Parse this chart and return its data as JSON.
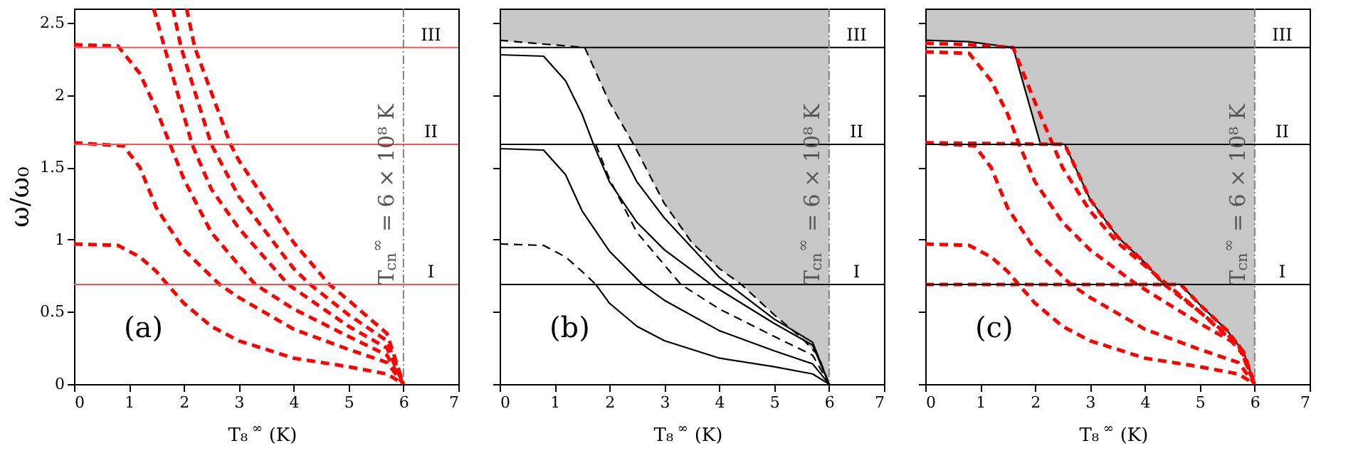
{
  "chart_data": [
    {
      "type": "line",
      "xlabel": "T₈$^{∞}$ (K)",
      "ylabel": "ω/ω₀",
      "xlim": [
        0,
        7
      ],
      "ylim": [
        0,
        2.6
      ],
      "xticks": [
        0,
        1,
        2,
        3,
        4,
        5,
        6,
        7
      ],
      "yticks": [
        0,
        0.5,
        1,
        1.5,
        2,
        2.5
      ],
      "line_style": "dashed",
      "annotations": [
        "(a)"
      ],
      "ref_lines": [
        {
          "axis": "y",
          "value": 0.69,
          "label": "I",
          "color": "#ff5050",
          "line_style": "solid"
        },
        {
          "axis": "y",
          "value": 1.66,
          "label": "II",
          "color": "#ff5050",
          "line_style": "solid"
        },
        {
          "axis": "y",
          "value": 2.33,
          "label": "III",
          "color": "#ff5050",
          "line_style": "solid"
        },
        {
          "axis": "x",
          "value": 6,
          "label": "T$_{cn}$$^{∞}$ = 6 × 10⁸ K",
          "color": "#808080",
          "line_style": "dashed"
        }
      ],
      "series": [
        {
          "color": "#ff0000",
          "x": [
            0,
            0.8,
            1.2,
            1.5,
            1.7,
            2,
            2.5,
            3,
            4,
            5,
            5.7,
            6
          ],
          "values": [
            0.97,
            0.96,
            0.88,
            0.78,
            0.69,
            0.56,
            0.4,
            0.3,
            0.18,
            0.12,
            0.07,
            0
          ]
        },
        {
          "color": "#ff0000",
          "x": [
            0,
            0.9,
            1.2,
            1.5,
            2,
            2.65,
            3,
            4,
            5,
            5.7,
            6
          ],
          "values": [
            1.67,
            1.65,
            1.5,
            1.22,
            0.93,
            0.69,
            0.6,
            0.38,
            0.24,
            0.15,
            0
          ]
        },
        {
          "color": "#ff0000",
          "x": [
            0,
            0.8,
            1.2,
            1.5,
            1.75,
            2,
            2.5,
            3.3,
            4,
            5,
            5.7,
            6
          ],
          "values": [
            2.35,
            2.34,
            2.15,
            1.9,
            1.66,
            1.42,
            1.05,
            0.69,
            0.52,
            0.33,
            0.2,
            0
          ]
        },
        {
          "color": "#ff0000",
          "x": [
            1.45,
            1.65,
            2.15,
            2.5,
            3,
            3.9,
            5,
            5.7,
            6
          ],
          "values": [
            2.6,
            2.33,
            1.66,
            1.35,
            1.08,
            0.69,
            0.4,
            0.25,
            0
          ]
        },
        {
          "color": "#ff0000",
          "x": [
            1.8,
            1.95,
            2.5,
            3,
            4,
            4.3,
            5,
            5.7,
            6
          ],
          "values": [
            2.6,
            2.33,
            1.66,
            1.3,
            0.8,
            0.69,
            0.48,
            0.3,
            0
          ]
        },
        {
          "color": "#ff0000",
          "x": [
            2.05,
            2.2,
            2.85,
            3,
            4,
            4.65,
            5,
            5.7,
            6
          ],
          "values": [
            2.6,
            2.33,
            1.66,
            1.55,
            0.98,
            0.69,
            0.58,
            0.35,
            0
          ]
        }
      ]
    },
    {
      "type": "line",
      "xlabel": "T₈$^{∞}$ (K)",
      "xlim": [
        0,
        7
      ],
      "ylim": [
        0,
        2.6
      ],
      "xticks": [
        0,
        1,
        2,
        3,
        4,
        5,
        6,
        7
      ],
      "yticks": [
        0,
        0.5,
        1,
        1.5,
        2,
        2.5
      ],
      "tick_labels": "x",
      "line_style": "solid",
      "annotations": [
        "(b)"
      ],
      "ref_lines": [
        {
          "axis": "y",
          "value": 0.69,
          "label": "I",
          "color": "#000000",
          "line_style": "solid"
        },
        {
          "axis": "y",
          "value": 1.66,
          "label": "II",
          "color": "#000000",
          "line_style": "solid"
        },
        {
          "axis": "y",
          "value": 2.33,
          "label": "III",
          "color": "#000000",
          "line_style": "solid"
        },
        {
          "axis": "x",
          "value": 6,
          "label": "T$_{cn}$$^{∞}$ = 6 × 10⁸ K",
          "color": "#808080",
          "line_style": "dashed"
        }
      ],
      "series": [
        {
          "color": "#000000",
          "line_style": "dashed",
          "x": [
            0,
            1.55,
            2,
            2.44,
            3,
            3.5,
            4,
            4.4,
            5,
            5.5,
            5.8,
            6
          ],
          "values": [
            2.38,
            2.33,
            1.95,
            1.66,
            1.25,
            0.98,
            0.8,
            0.69,
            0.48,
            0.32,
            0.2,
            0
          ],
          "lower": [
            2.38,
            2.33,
            1.95,
            1.66,
            1.25,
            0.98,
            0.8,
            0.69,
            0.48,
            0.32,
            0.2,
            0
          ],
          "upper": [
            2.6,
            2.6,
            2.6,
            2.6,
            2.6,
            2.6,
            2.6,
            2.6,
            2.6,
            2.6,
            2.6,
            2.6
          ]
        },
        {
          "color": "#000000",
          "line_style": "dashed",
          "x": [
            0,
            0.8,
            1.2,
            1.5,
            1.75
          ],
          "values": [
            0.97,
            0.96,
            0.88,
            0.78,
            0.69
          ]
        },
        {
          "color": "#000000",
          "x": [
            1.75,
            2,
            2.5,
            3,
            4,
            5,
            5.7,
            6
          ],
          "values": [
            0.69,
            0.56,
            0.4,
            0.3,
            0.18,
            0.12,
            0.07,
            0
          ]
        },
        {
          "color": "#000000",
          "x": [
            0,
            0.8,
            1.2,
            1.5,
            2,
            2.6,
            3,
            4,
            5,
            5.7,
            6
          ],
          "values": [
            1.63,
            1.62,
            1.45,
            1.2,
            0.92,
            0.69,
            0.58,
            0.37,
            0.23,
            0.14,
            0
          ]
        },
        {
          "color": "#000000",
          "line_style": "dashed",
          "x": [
            1.75,
            2,
            2.5,
            3.3,
            4,
            5,
            5.7,
            6
          ],
          "values": [
            1.66,
            1.42,
            1.05,
            0.69,
            0.52,
            0.33,
            0.2,
            0
          ]
        },
        {
          "color": "#000000",
          "x": [
            0,
            0.8,
            1.2,
            1.5,
            1.71,
            2,
            2.5,
            3,
            3.85,
            5,
            5.7,
            6
          ],
          "values": [
            2.28,
            2.27,
            2.1,
            1.87,
            1.66,
            1.4,
            1.12,
            0.93,
            0.69,
            0.42,
            0.27,
            0
          ]
        },
        {
          "color": "#000000",
          "x": [
            2.15,
            2.5,
            3,
            4,
            5,
            5.7,
            6
          ],
          "values": [
            1.66,
            1.4,
            1.15,
            0.74,
            0.45,
            0.29,
            0
          ]
        }
      ]
    },
    {
      "type": "line",
      "xlabel": "T₈$^{∞}$ (K)",
      "xlim": [
        0,
        7
      ],
      "ylim": [
        0,
        2.6
      ],
      "xticks": [
        0,
        1,
        2,
        3,
        4,
        5,
        6,
        7
      ],
      "yticks": [
        0,
        0.5,
        1,
        1.5,
        2,
        2.5
      ],
      "tick_labels": "x",
      "line_style": "dashed",
      "annotations": [
        "(c)"
      ],
      "ref_lines": [
        {
          "axis": "y",
          "value": 0.69,
          "label": "I",
          "color": "#000000",
          "line_style": "solid"
        },
        {
          "axis": "y",
          "value": 1.66,
          "label": "II",
          "color": "#000000",
          "line_style": "solid"
        },
        {
          "axis": "y",
          "value": 2.33,
          "label": "III",
          "color": "#000000",
          "line_style": "solid"
        },
        {
          "axis": "x",
          "value": 6,
          "label": "T$_{cn}$$^{∞}$ = 6 × 10⁸ K",
          "color": "#808080",
          "line_style": "dashed"
        }
      ],
      "series": [
        {
          "color": "#000000",
          "line_style": "solid",
          "x": [
            0,
            0.8,
            1.6,
            2.1,
            2.54,
            3,
            3.5,
            4,
            4.35,
            4.65,
            5,
            5.5,
            5.8,
            6
          ],
          "values": [
            2.38,
            2.37,
            2.33,
            1.66,
            1.66,
            1.28,
            1.02,
            0.84,
            0.69,
            0.69,
            0.55,
            0.37,
            0.22,
            0
          ],
          "lower": [
            2.38,
            2.37,
            2.33,
            1.66,
            1.66,
            1.28,
            1.02,
            0.84,
            0.69,
            0.69,
            0.55,
            0.37,
            0.22,
            0
          ],
          "upper": [
            2.6,
            2.6,
            2.6,
            2.6,
            2.6,
            2.6,
            2.6,
            2.6,
            2.6,
            2.6,
            2.6,
            2.6,
            2.6,
            2.6
          ]
        },
        {
          "color": "#ff0000",
          "x": [
            0,
            0.8,
            1.2,
            1.5,
            1.7,
            2,
            2.5,
            3,
            4,
            5,
            5.7,
            6
          ],
          "values": [
            0.97,
            0.96,
            0.88,
            0.78,
            0.69,
            0.56,
            0.4,
            0.3,
            0.18,
            0.12,
            0.07,
            0
          ]
        },
        {
          "color": "#ff0000",
          "x": [
            0,
            0.9,
            1.2,
            1.5,
            2,
            2.65,
            3,
            4,
            5,
            5.7,
            6
          ],
          "values": [
            1.67,
            1.65,
            1.5,
            1.22,
            0.93,
            0.69,
            0.6,
            0.38,
            0.24,
            0.15,
            0
          ]
        },
        {
          "color": "#ff0000",
          "x": [
            0,
            0.8,
            1.2,
            1.5,
            1.71,
            2,
            2.5,
            3,
            3.85,
            5,
            5.7,
            6
          ],
          "values": [
            2.3,
            2.29,
            2.1,
            1.87,
            1.66,
            1.4,
            1.12,
            0.93,
            0.69,
            0.42,
            0.27,
            0
          ]
        },
        {
          "color": "#ff0000",
          "x": [
            0,
            4.65,
            5,
            5.5,
            5.8,
            6
          ],
          "values": [
            0.69,
            0.69,
            0.55,
            0.37,
            0.22,
            0
          ]
        },
        {
          "color": "#ff0000",
          "x": [
            0,
            2.54,
            3,
            3.5,
            4,
            4.35,
            5,
            5.5,
            5.8,
            6
          ],
          "values": [
            1.67,
            1.66,
            1.28,
            1.02,
            0.84,
            0.69,
            0.5,
            0.33,
            0.2,
            0
          ]
        },
        {
          "color": "#ff0000",
          "x": [
            0,
            0.8,
            1.6,
            2,
            2.5,
            3,
            3.5,
            4,
            5,
            5.7,
            6
          ],
          "values": [
            2.36,
            2.35,
            2.33,
            1.95,
            1.5,
            1.2,
            0.98,
            0.82,
            0.5,
            0.28,
            0
          ]
        }
      ]
    }
  ]
}
